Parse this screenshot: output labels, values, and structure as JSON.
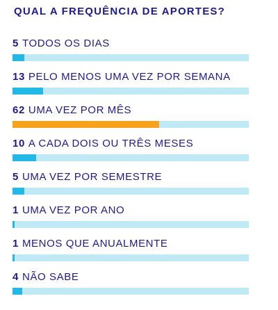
{
  "title": "QUAL A FREQUÊNCIA DE APORTES?",
  "colors": {
    "text": "#1f1a8c",
    "track": "#bfe9f7",
    "bar": "#22b9e6",
    "highlight": "#f6a31b"
  },
  "chart_data": {
    "type": "bar",
    "orientation": "horizontal",
    "title": "QUAL A FREQUÊNCIA DE APORTES?",
    "xlim": [
      0,
      100
    ],
    "grid": false,
    "highlighted_index": 2,
    "categories": [
      "TODOS OS DIAS",
      "PELO MENOS UMA VEZ POR SEMANA",
      "UMA VEZ POR MÊS",
      "A CADA DOIS OU TRÊS MESES",
      "UMA VEZ POR SEMESTRE",
      "UMA VEZ POR ANO",
      "MENOS QUE ANUALMENTE",
      "NÃO SABE"
    ],
    "values": [
      5,
      13,
      62,
      10,
      5,
      1,
      1,
      4
    ]
  }
}
